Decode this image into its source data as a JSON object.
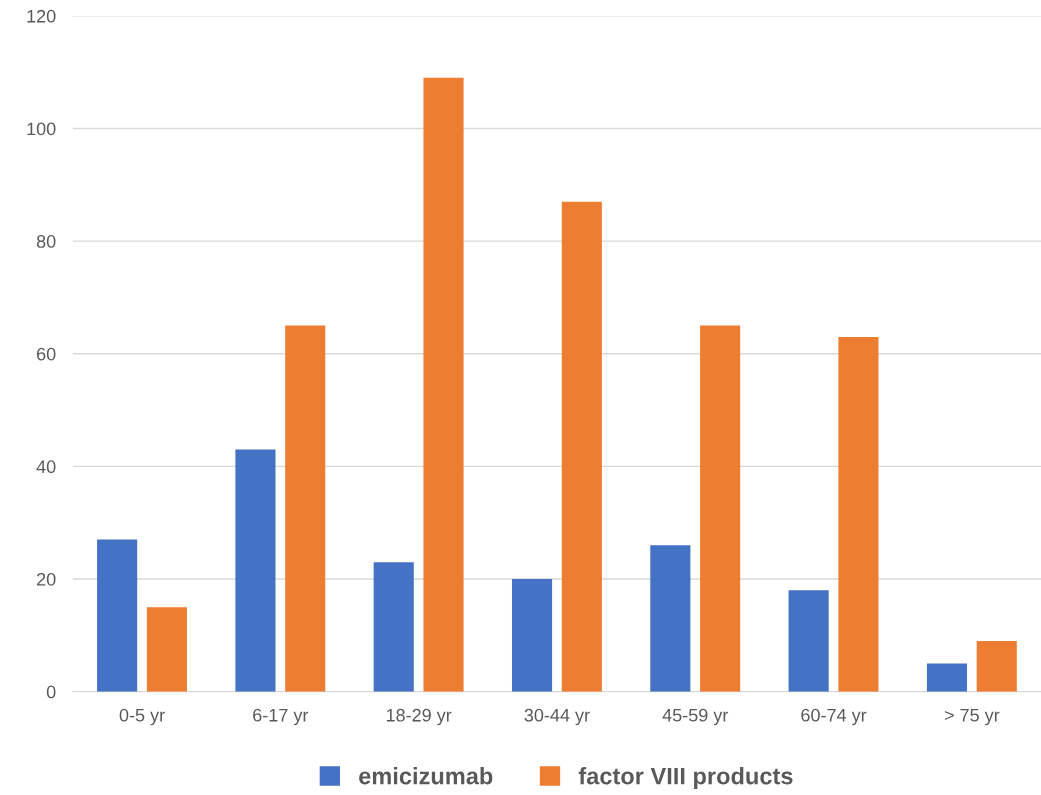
{
  "chart_data": {
    "type": "bar",
    "categories": [
      "0-5 yr",
      "6-17 yr",
      "18-29 yr",
      "30-44 yr",
      "45-59 yr",
      "60-74 yr",
      "> 75 yr"
    ],
    "series": [
      {
        "name": "emicizumab",
        "color": "#4472c4",
        "values": [
          27,
          43,
          23,
          20,
          26,
          18,
          5
        ]
      },
      {
        "name": "factor VIII products",
        "color": "#ed7d31",
        "values": [
          15,
          65,
          109,
          87,
          65,
          63,
          9
        ]
      }
    ],
    "ylim": [
      0,
      120
    ],
    "yticks": [
      0,
      20,
      40,
      60,
      80,
      100,
      120
    ],
    "grid": "y",
    "legend": "bottom"
  }
}
